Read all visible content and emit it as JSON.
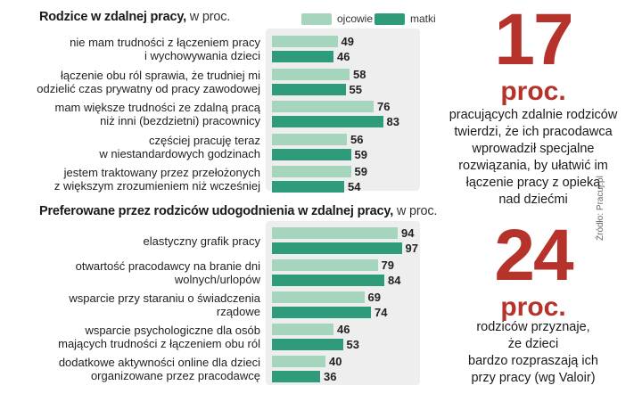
{
  "legend": {
    "ojcowie": "ojcowie",
    "matki": "matki"
  },
  "colors": {
    "ojcowie": "#a6d5be",
    "matki": "#2e9b7a",
    "accent": "#b5332a"
  },
  "chart_data": [
    {
      "type": "bar",
      "title": "Rodzice  w zdalnej pracy,",
      "subtitle": "w proc.",
      "series": [
        {
          "name": "ojcowie",
          "values": [
            49,
            58,
            76,
            56,
            59
          ]
        },
        {
          "name": "matki",
          "values": [
            46,
            55,
            83,
            59,
            54
          ]
        }
      ],
      "categories": [
        [
          "nie mam trudności z łączeniem pracy",
          "i wychowywania dzieci"
        ],
        [
          "łączenie obu ról sprawia, że trudniej mi",
          "odzielić czas prywatny od pracy zawodowej"
        ],
        [
          "mam większe trudności ze zdalną pracą",
          "niż inni (bezdzietni) pracownicy"
        ],
        [
          "częściej pracuję teraz",
          "w niestandardowych godzinach"
        ],
        [
          "jestem traktowany przez przełożonych",
          "z większym zrozumieniem niż wcześniej"
        ]
      ],
      "xlim": [
        0,
        100
      ]
    },
    {
      "type": "bar",
      "title": "Preferowane przez rodziców udogodnienia w zdalnej pracy,",
      "subtitle": "w proc.",
      "series": [
        {
          "name": "ojcowie",
          "values": [
            94,
            79,
            69,
            46,
            40
          ]
        },
        {
          "name": "matki",
          "values": [
            97,
            84,
            74,
            53,
            36
          ]
        }
      ],
      "categories": [
        [
          "elastyczny grafik pracy"
        ],
        [
          "otwartość pracodawcy na branie dni",
          "wolnych/urlopów"
        ],
        [
          "wsparcie przy staraniu o świadczenia",
          "rządowe"
        ],
        [
          "wsparcie psychologiczne dla osób",
          "mających trudności z łączeniem obu ról"
        ],
        [
          "dodatkowe aktywności online dla dzieci",
          "organizowane przez pracodawcę"
        ]
      ],
      "xlim": [
        0,
        100
      ]
    }
  ],
  "stat1": {
    "number": "17",
    "unit": "proc.",
    "caption": [
      "pracujących zdalnie rodziców",
      "twierdzi, że ich pracodawca",
      "wprowadził specjalne",
      "rozwiązania, by ułatwić im",
      "łączenie pracy z opieką",
      "nad dziećmi"
    ]
  },
  "stat2": {
    "number": "24",
    "unit": "proc.",
    "caption": [
      "rodziców przyznaje,",
      "że dzieci",
      "bardzo rozpraszają ich",
      "przy pracy (wg Valoir)"
    ]
  },
  "source": "Źródło: Pracuj.pl"
}
